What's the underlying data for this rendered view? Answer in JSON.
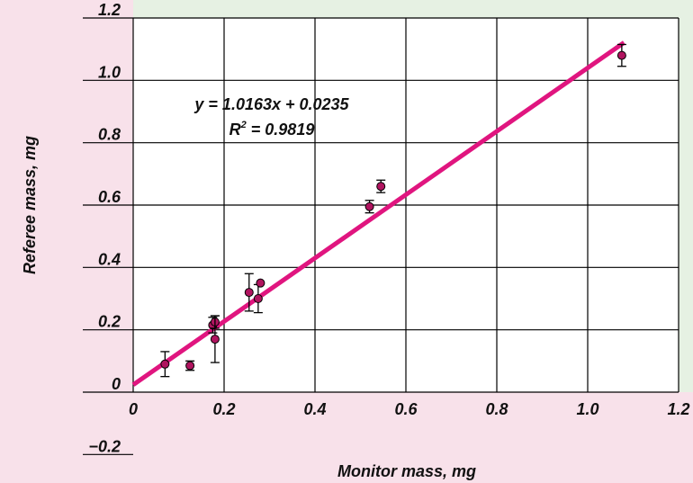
{
  "chart_data": {
    "type": "scatter",
    "title": "",
    "xlabel": "Monitor mass, mg",
    "ylabel": "Referee mass, mg",
    "xlim": [
      0,
      1.2
    ],
    "ylim": [
      -0.2,
      1.2
    ],
    "x_ticks": [
      0,
      0.2,
      0.4,
      0.6,
      0.8,
      1.0,
      1.2
    ],
    "y_ticks": [
      -0.2,
      0,
      0.2,
      0.4,
      0.6,
      0.8,
      1.0,
      1.2
    ],
    "x_tick_labels": [
      "0",
      "0.2",
      "0.4",
      "0.6",
      "0.8",
      "1.0",
      "1.2"
    ],
    "y_tick_labels": [
      "−0.2",
      "0",
      "0.2",
      "0.4",
      "0.6",
      "0.8",
      "1.0",
      "1.2"
    ],
    "grid": true,
    "points": [
      {
        "x": 0.07,
        "y": 0.09,
        "err": 0.04
      },
      {
        "x": 0.125,
        "y": 0.085,
        "err": 0.015
      },
      {
        "x": 0.175,
        "y": 0.215,
        "err": 0.025
      },
      {
        "x": 0.18,
        "y": 0.225,
        "err": 0.02
      },
      {
        "x": 0.18,
        "y": 0.17,
        "err": 0.075
      },
      {
        "x": 0.255,
        "y": 0.32,
        "err": 0.06
      },
      {
        "x": 0.275,
        "y": 0.3,
        "err": 0.045
      },
      {
        "x": 0.28,
        "y": 0.35,
        "err": 0.0
      },
      {
        "x": 0.52,
        "y": 0.595,
        "err": 0.02
      },
      {
        "x": 0.545,
        "y": 0.66,
        "err": 0.02
      },
      {
        "x": 1.075,
        "y": 1.08,
        "err": 0.035
      }
    ],
    "fit": {
      "slope": 1.0163,
      "intercept": 0.0235,
      "x_range": [
        0,
        1.08
      ]
    },
    "equation": "y = 1.0163x + 0.0235",
    "r2_prefix": "R",
    "r2_exponent": "2",
    "r2_value": " = 0.9819",
    "colors": {
      "background": "#e6f1e3",
      "band": "#f8e1ea",
      "plot_bg": "#ffffff",
      "fit_line": "#e0157f",
      "marker": "#b0145f",
      "grid": "#000000"
    }
  }
}
